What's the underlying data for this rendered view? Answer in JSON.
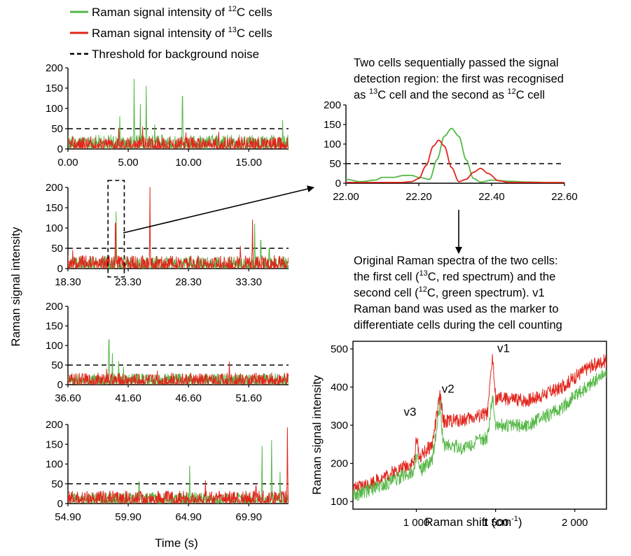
{
  "legend": {
    "items": [
      {
        "pre": "Raman signal intensity of ",
        "sup": "12",
        "post": "C cells",
        "color": "#55b847",
        "style": "solid"
      },
      {
        "pre": "Raman signal intensity of ",
        "sup": "13",
        "post": "C cells",
        "color": "#e1251b",
        "style": "solid"
      },
      {
        "pre": "Threshold for background noise",
        "sup": "",
        "post": "",
        "color": "#000000",
        "style": "dashed"
      }
    ]
  },
  "colors": {
    "c12": "#55b847",
    "c13": "#e1251b",
    "threshold": "#000000",
    "frame": "#000000"
  },
  "panel_labels": {
    "left_ylabel": "Raman signal intensity",
    "left_xlabel": "Time (s)",
    "spectrum_ylabel": "Raman signal intensity",
    "spectrum_xlabel_main": "Raman shift (cm",
    "spectrum_xlabel_sup": "-1",
    "spectrum_xlabel_end": ")"
  },
  "annotations": {
    "zoom_note": [
      {
        "text": "Two cells sequentially passed the signal"
      },
      {
        "text": "detection region: the first was recognised"
      },
      {
        "pre": "as ",
        "sup": "13",
        "mid": "C cell and the second as ",
        "sup2": "12",
        "post": "C cell"
      }
    ],
    "spectra_note": [
      {
        "text": "Original Raman spectra of the two cells:"
      },
      {
        "pre": "the first cell (",
        "sup": "13",
        "post": "C, red spectrum) and the"
      },
      {
        "pre": "second cell (",
        "sup": "12",
        "post": "C, green spectrum). v1"
      },
      {
        "text": "Raman band was used as the marker to"
      },
      {
        "text": "differentiate cells during the cell counting"
      }
    ]
  },
  "chart_data": [
    {
      "type": "line",
      "id": "time-trace-1",
      "x_tick_labels": [
        "0.00",
        "5.00",
        "10.00",
        "15.00"
      ],
      "x_ticks": [
        0,
        5,
        10,
        15
      ],
      "xlim": [
        0,
        18.3
      ],
      "y_tick_labels": [
        "0",
        "50",
        "100",
        "150",
        "200"
      ],
      "ylim": [
        0,
        200
      ],
      "threshold": 50,
      "series": [
        {
          "name": "Raman signal intensity of 12C cells",
          "color": "#55b847",
          "peaks": [
            [
              4.3,
              80
            ],
            [
              5.5,
              172
            ],
            [
              6.0,
              110
            ],
            [
              6.5,
              155
            ],
            [
              7.2,
              60
            ],
            [
              9.5,
              130
            ],
            [
              17.8,
              70
            ]
          ],
          "noise": 35
        },
        {
          "name": "Raman signal intensity of 13C cells",
          "color": "#e1251b",
          "peaks": [
            [
              4.2,
              50
            ],
            [
              6.2,
              55
            ],
            [
              9.8,
              40
            ],
            [
              12.5,
              42
            ]
          ],
          "noise": 30
        }
      ]
    },
    {
      "type": "line",
      "id": "time-trace-2",
      "x_tick_labels": [
        "18.30",
        "23.30",
        "28.30",
        "33.30"
      ],
      "x_ticks": [
        18.3,
        23.3,
        28.3,
        33.3
      ],
      "xlim": [
        18.3,
        36.6
      ],
      "y_tick_labels": [
        "0",
        "50",
        "100",
        "150",
        "200"
      ],
      "ylim": [
        0,
        200
      ],
      "threshold": 50,
      "highlight_box": [
        21.8,
        22.8
      ],
      "series": [
        {
          "name": "Raman signal intensity of 12C cells",
          "color": "#55b847",
          "peaks": [
            [
              22.3,
              140
            ],
            [
              33.8,
              110
            ],
            [
              34.3,
              70
            ],
            [
              35.0,
              50
            ]
          ],
          "noise": 30
        },
        {
          "name": "Raman signal intensity of 13C cells",
          "color": "#e1251b",
          "peaks": [
            [
              22.25,
              112
            ],
            [
              25.1,
              200
            ],
            [
              18.7,
              45
            ],
            [
              32.6,
              55
            ],
            [
              33.6,
              120
            ]
          ],
          "noise": 32
        }
      ]
    },
    {
      "type": "line",
      "id": "time-trace-3",
      "x_tick_labels": [
        "36.60",
        "41.60",
        "46.60",
        "51.60"
      ],
      "x_ticks": [
        36.6,
        41.6,
        46.6,
        51.6
      ],
      "xlim": [
        36.6,
        54.9
      ],
      "y_tick_labels": [
        "0",
        "50",
        "100",
        "150",
        "200"
      ],
      "ylim": [
        0,
        200
      ],
      "threshold": 50,
      "series": [
        {
          "name": "Raman signal intensity of 12C cells",
          "color": "#55b847",
          "peaks": [
            [
              40.0,
              115
            ],
            [
              40.3,
              80
            ],
            [
              40.8,
              60
            ],
            [
              41.2,
              45
            ]
          ],
          "noise": 28
        },
        {
          "name": "Raman signal intensity of 13C cells",
          "color": "#e1251b",
          "peaks": [
            [
              39.8,
              40
            ],
            [
              50.0,
              58
            ],
            [
              44.0,
              35
            ]
          ],
          "noise": 30
        }
      ]
    },
    {
      "type": "line",
      "id": "time-trace-4",
      "x_tick_labels": [
        "54.90",
        "59.90",
        "64.90",
        "69.90"
      ],
      "x_ticks": [
        54.9,
        59.9,
        64.9,
        69.9
      ],
      "xlim": [
        54.9,
        73.2
      ],
      "y_tick_labels": [
        "0",
        "50",
        "100",
        "150",
        "200"
      ],
      "ylim": [
        0,
        200
      ],
      "threshold": 50,
      "series": [
        {
          "name": "Raman signal intensity of 12C cells",
          "color": "#55b847",
          "peaks": [
            [
              65.0,
              95
            ],
            [
              60.8,
              55
            ],
            [
              71.0,
              145
            ],
            [
              71.8,
              160
            ],
            [
              72.5,
              80
            ]
          ],
          "noise": 28
        },
        {
          "name": "Raman signal intensity of 13C cells",
          "color": "#e1251b",
          "peaks": [
            [
              73.1,
              192
            ],
            [
              66.3,
              58
            ],
            [
              70.5,
              45
            ]
          ],
          "noise": 32
        }
      ]
    },
    {
      "type": "line",
      "id": "zoom-trace",
      "x_tick_labels": [
        "22.00",
        "22.20",
        "22.40",
        "22.60"
      ],
      "x_ticks": [
        22.0,
        22.2,
        22.4,
        22.6
      ],
      "xlim": [
        22.0,
        22.6
      ],
      "y_tick_labels": [
        "0",
        "50",
        "100",
        "150",
        "200"
      ],
      "ylim": [
        0,
        200
      ],
      "threshold": 50,
      "series": [
        {
          "name": "Raman signal intensity of 12C cells",
          "color": "#55b847",
          "x": [
            22.0,
            22.04,
            22.08,
            22.1,
            22.13,
            22.16,
            22.18,
            22.2,
            22.23,
            22.25,
            22.27,
            22.29,
            22.31,
            22.33,
            22.35,
            22.37,
            22.4,
            22.45,
            22.5,
            22.55,
            22.6
          ],
          "y": [
            10,
            4,
            8,
            15,
            15,
            20,
            20,
            15,
            10,
            60,
            120,
            140,
            120,
            60,
            12,
            3,
            8,
            5,
            3,
            2,
            2
          ]
        },
        {
          "name": "Raman signal intensity of 13C cells",
          "color": "#e1251b",
          "x": [
            22.0,
            22.05,
            22.1,
            22.15,
            22.18,
            22.2,
            22.22,
            22.24,
            22.255,
            22.27,
            22.29,
            22.31,
            22.33,
            22.35,
            22.37,
            22.39,
            22.42,
            22.45,
            22.5,
            22.6
          ],
          "y": [
            2,
            2,
            2,
            2,
            4,
            12,
            45,
            95,
            110,
            95,
            40,
            4,
            10,
            28,
            38,
            25,
            6,
            2,
            2,
            2
          ]
        }
      ]
    },
    {
      "type": "line",
      "id": "raman-spectra",
      "x_tick_labels": [
        "1 000",
        "1 500",
        "2 000"
      ],
      "x_ticks": [
        1000,
        1500,
        2000
      ],
      "xlim": [
        600,
        2200
      ],
      "y_tick_labels": [
        "100",
        "200",
        "300",
        "400",
        "500"
      ],
      "y_ticks": [
        100,
        200,
        300,
        400,
        500
      ],
      "ylim": [
        80,
        520
      ],
      "band_labels": [
        {
          "text": "v3",
          "x": 960,
          "y": 325
        },
        {
          "text": "v2",
          "x": 1200,
          "y": 385
        },
        {
          "text": "v1",
          "x": 1550,
          "y": 492
        }
      ],
      "series": [
        {
          "name": "13C cell spectrum",
          "color": "#e1251b",
          "baseline": [
            [
              600,
              130
            ],
            [
              800,
              165
            ],
            [
              990,
              205
            ],
            [
              1000,
              275
            ],
            [
              1020,
              215
            ],
            [
              1100,
              250
            ],
            [
              1150,
              380
            ],
            [
              1170,
              310
            ],
            [
              1300,
              315
            ],
            [
              1450,
              330
            ],
            [
              1480,
              480
            ],
            [
              1500,
              370
            ],
            [
              1700,
              365
            ],
            [
              1900,
              395
            ],
            [
              2100,
              455
            ],
            [
              2200,
              470
            ]
          ],
          "noise": 18
        },
        {
          "name": "12C cell spectrum",
          "color": "#55b847",
          "baseline": [
            [
              600,
              115
            ],
            [
              800,
              145
            ],
            [
              990,
              180
            ],
            [
              1000,
              230
            ],
            [
              1020,
              180
            ],
            [
              1100,
              205
            ],
            [
              1150,
              355
            ],
            [
              1170,
              250
            ],
            [
              1300,
              240
            ],
            [
              1450,
              270
            ],
            [
              1480,
              380
            ],
            [
              1500,
              300
            ],
            [
              1700,
              300
            ],
            [
              1900,
              340
            ],
            [
              2100,
              410
            ],
            [
              2200,
              440
            ]
          ],
          "noise": 18
        }
      ]
    }
  ]
}
